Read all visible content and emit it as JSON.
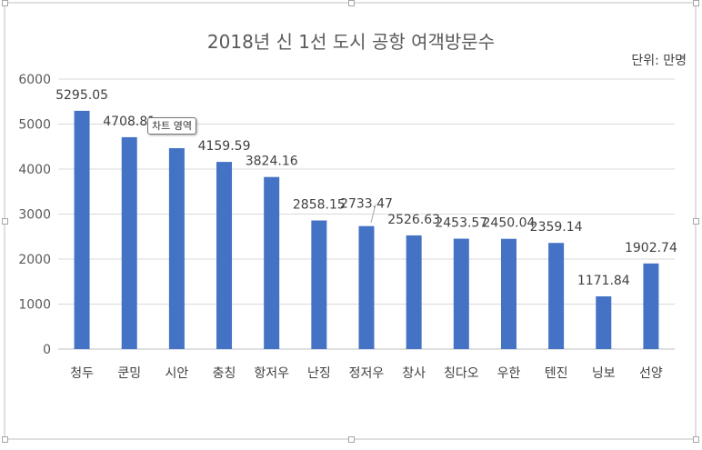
{
  "chart_data": {
    "type": "bar",
    "title": "2018년 신 1선 도시 공항 여객방문수",
    "unit_label": "단위: 만명",
    "categories": [
      "청두",
      "쿤밍",
      "시안",
      "충칭",
      "항저우",
      "난징",
      "정저우",
      "창사",
      "칭다오",
      "우한",
      "텐진",
      "닝보",
      "선양"
    ],
    "series": [
      {
        "values": [
          5295.05,
          4708.81,
          4465,
          4159.59,
          3824.16,
          2858.15,
          2733.47,
          2526.63,
          2453.57,
          2450.04,
          2359.14,
          1171.84,
          1902.74
        ]
      }
    ],
    "data_labels": [
      "5295.05",
      "4708.81",
      "",
      "4159.59",
      "3824.16",
      "2858.15",
      "2733.47",
      "2526.63",
      "2453.57",
      "2450.04",
      "2359.14",
      "1171.84",
      "1902.74"
    ],
    "ylim": [
      0,
      6000
    ],
    "yticks": [
      0,
      1000,
      2000,
      3000,
      4000,
      5000,
      6000
    ],
    "grid": true,
    "bar_color": "#4472c4",
    "gridline_color": "#d9d9d9"
  },
  "tooltip": {
    "label": "차트 영역"
  }
}
